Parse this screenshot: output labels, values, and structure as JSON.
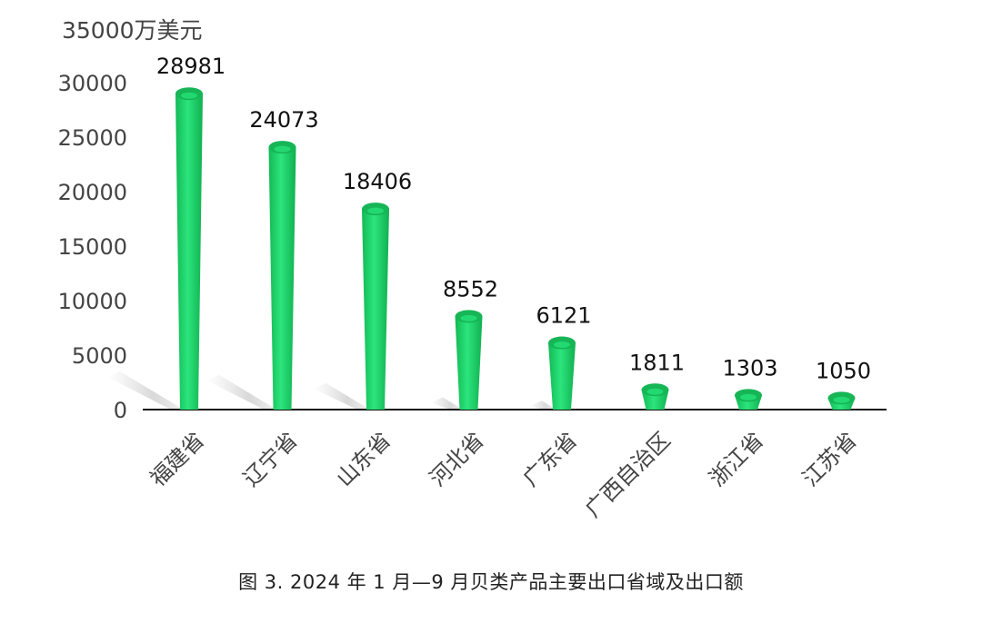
{
  "chart_data": {
    "type": "bar",
    "unit_label": "35000万美元",
    "categories": [
      "福建省",
      "辽宁省",
      "山东省",
      "河北省",
      "广东省",
      "广西自治区",
      "浙江省",
      "江苏省"
    ],
    "values": [
      28981,
      24073,
      18406,
      8552,
      6121,
      1811,
      1303,
      1050
    ],
    "value_labels": [
      "28981",
      "24073",
      "18406",
      "8552",
      "6121",
      "1811",
      "1303",
      "1050"
    ],
    "y_ticks": [
      "0",
      "5000",
      "10000",
      "15000",
      "20000",
      "25000",
      "30000"
    ],
    "ylim": [
      0,
      35000
    ],
    "grid": false,
    "legend": "none",
    "bar_color": "#1ed46a",
    "bar_top_color": "#16b556"
  },
  "caption": "图 3.  2024 年 1 月—9 月贝类产品主要出口省域及出口额"
}
